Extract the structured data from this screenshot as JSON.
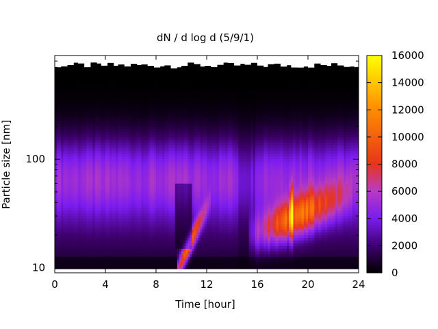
{
  "chart_data": {
    "type": "heatmap",
    "title": "dN / d log d (5/9/1)",
    "xlabel": "Time [hour]",
    "ylabel": "Particle size [nm]",
    "xlim": [
      0,
      24
    ],
    "ylim_nm": [
      9,
      900
    ],
    "y_scale": "log",
    "x_ticks": [
      0,
      4,
      8,
      12,
      16,
      20,
      24
    ],
    "y_ticks": [
      {
        "value": 10,
        "label": "10"
      },
      {
        "value": 100,
        "label": "100"
      }
    ],
    "colorbar": {
      "min": 0,
      "max": 16000,
      "ticks": [
        0,
        2000,
        4000,
        6000,
        8000,
        10000,
        12000,
        14000,
        16000
      ],
      "palette": [
        "#000000",
        "#3d006a",
        "#7b1cf0",
        "#b83cc0",
        "#e8341c",
        "#ff8c00",
        "#ffff00"
      ]
    },
    "no_data_region": "upper cutoff approx. 560–800 nm (blank above, black edge)",
    "features": [
      {
        "name": "background mode",
        "time_range": [
          0,
          24
        ],
        "diameter_nm": [
          40,
          150
        ],
        "value": 4500
      },
      {
        "name": "event 1",
        "time_range": [
          9.8,
          12.2
        ],
        "diameter_nm": [
          10,
          45
        ],
        "peak_value": 13000
      },
      {
        "name": "event 2",
        "time_range": [
          15.5,
          23
        ],
        "diameter_nm": [
          15,
          60
        ],
        "peak_value": 14000
      },
      {
        "name": "spike",
        "time": 18.7,
        "diameter_nm": [
          25,
          100
        ],
        "peak_value": 16000
      }
    ]
  }
}
